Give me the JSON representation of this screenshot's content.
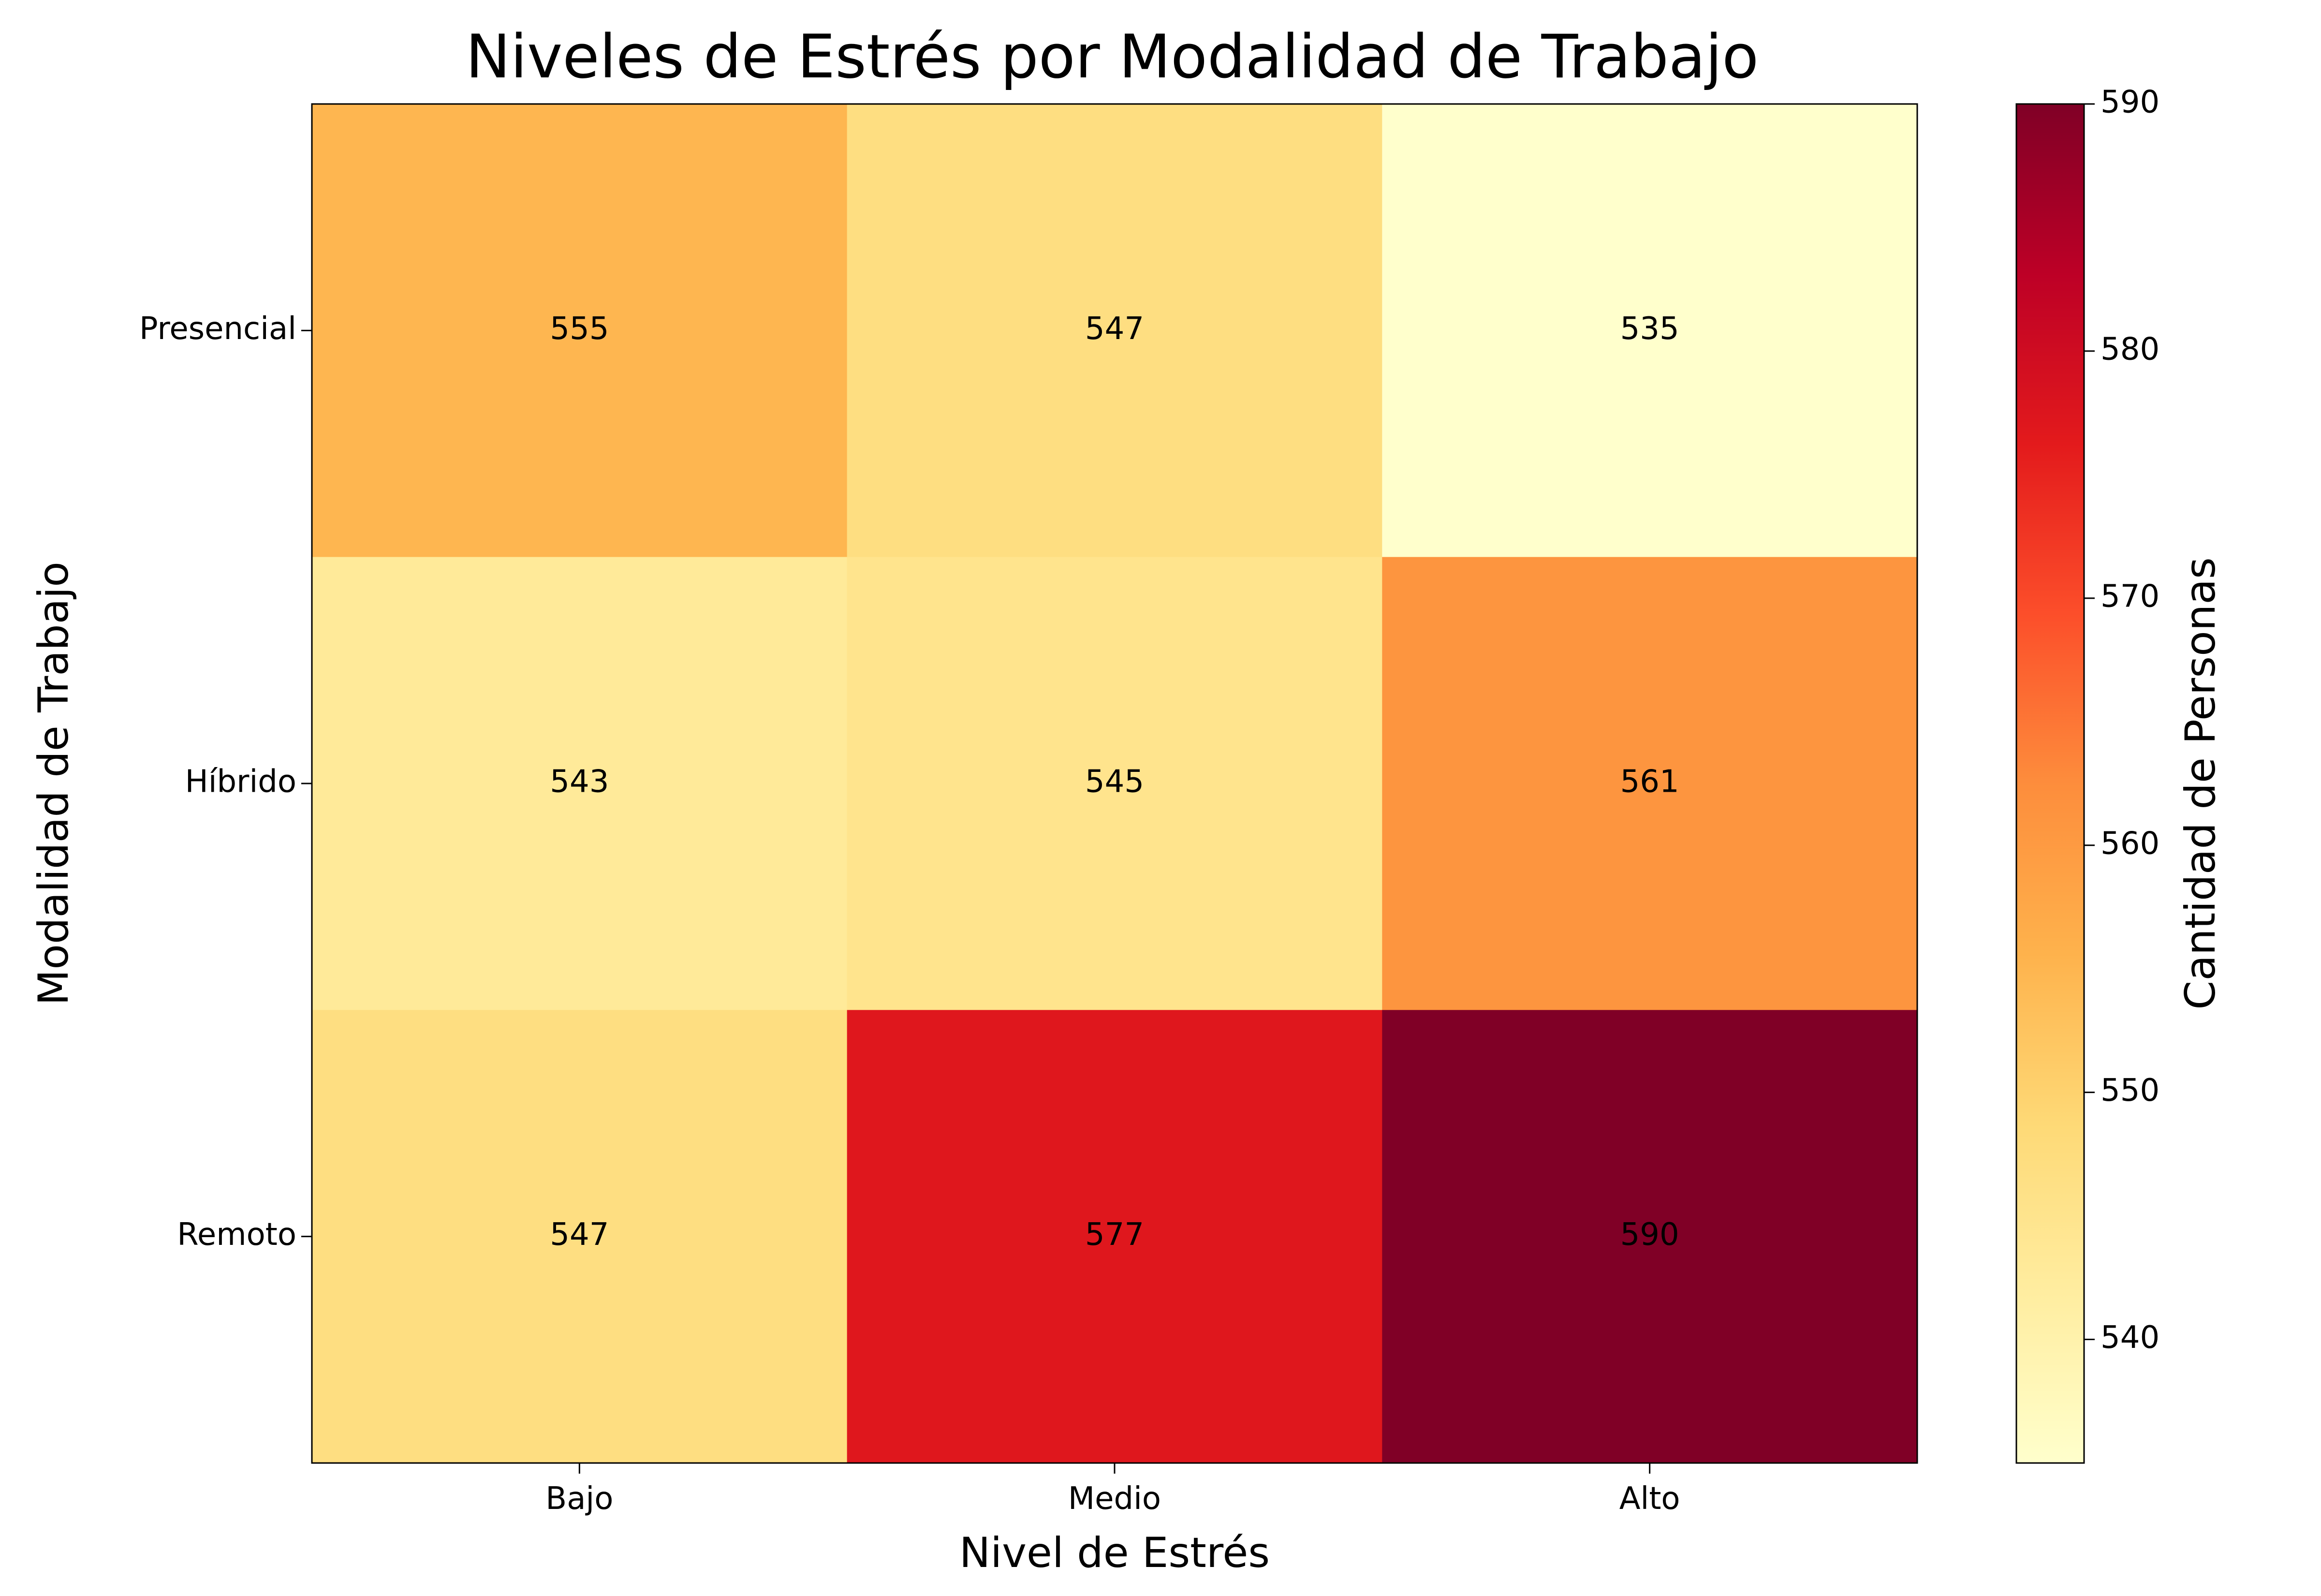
{
  "chart_data": {
    "type": "heatmap",
    "title": "Niveles de Estrés por Modalidad de Trabajo",
    "xlabel": "Nivel de Estrés",
    "ylabel": "Modalidad de Trabajo",
    "x_categories": [
      "Bajo",
      "Medio",
      "Alto"
    ],
    "y_categories": [
      "Presencial",
      "Híbrido",
      "Remoto"
    ],
    "values": [
      [
        555,
        547,
        535
      ],
      [
        543,
        545,
        561
      ],
      [
        547,
        577,
        590
      ]
    ],
    "colorbar": {
      "label": "Cantidad de Personas",
      "range": [
        535,
        590
      ],
      "ticks": [
        "540",
        "550",
        "560",
        "570",
        "580",
        "590"
      ],
      "colormap": "YlOrRd",
      "colormap_stops": [
        "#ffffcc",
        "#ffeda0",
        "#fed976",
        "#feb24c",
        "#fd8d3c",
        "#fc4e2a",
        "#e31a1c",
        "#bd0026",
        "#800026"
      ]
    },
    "grid": false
  }
}
